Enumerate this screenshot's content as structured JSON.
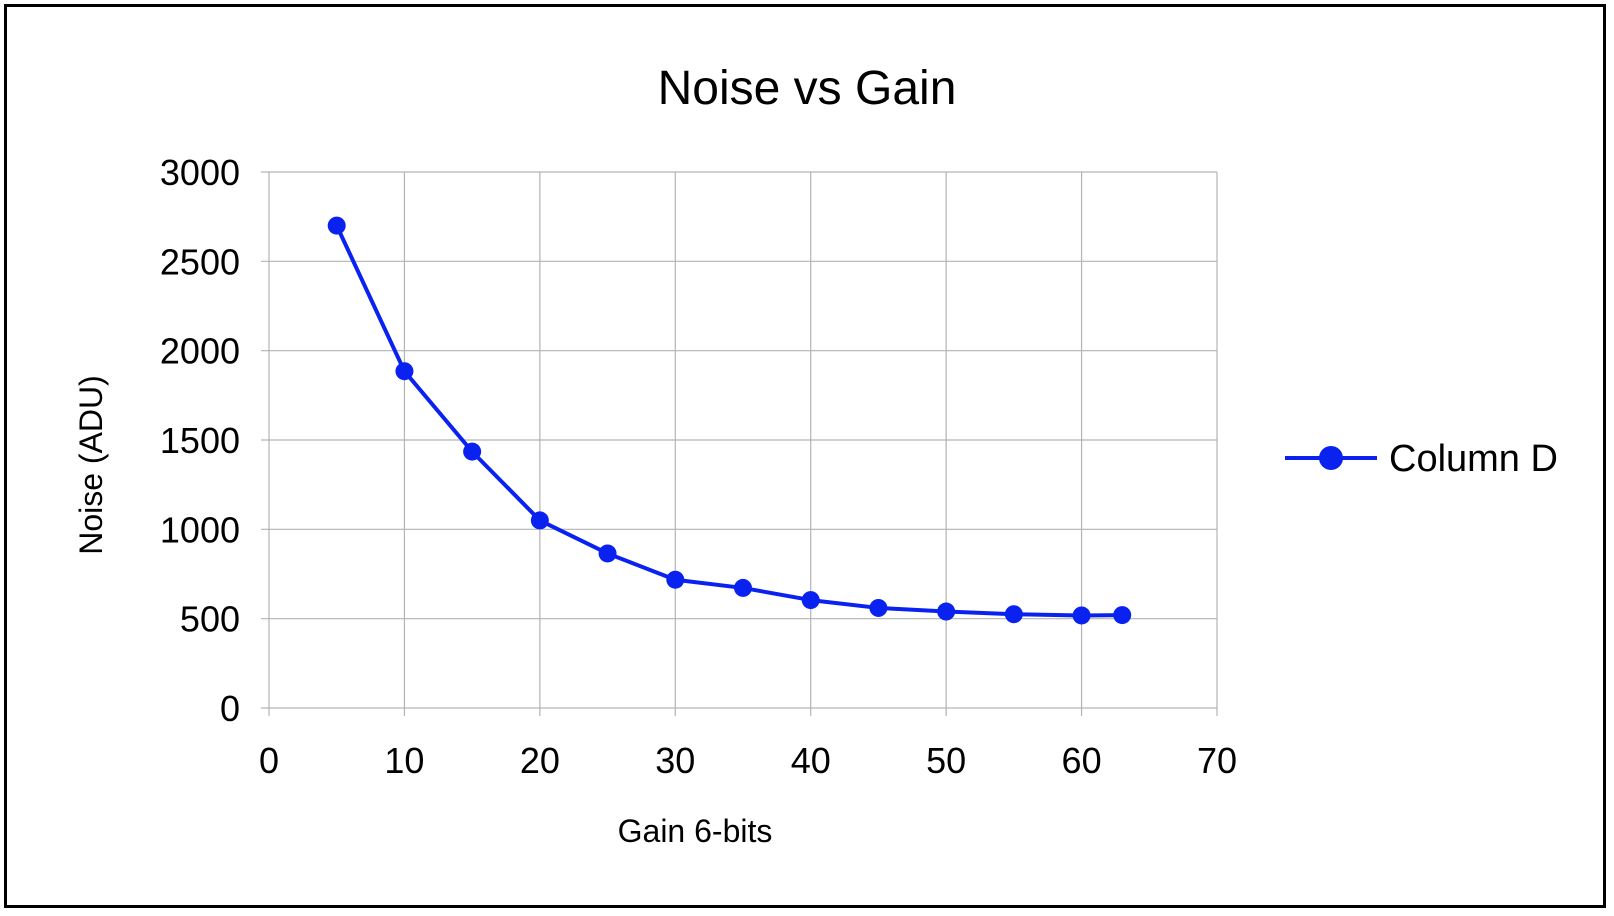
{
  "chart_data": {
    "type": "line",
    "title": "Noise vs Gain",
    "xlabel": "Gain 6-bits",
    "ylabel": "Noise (ADU)",
    "xlim": [
      0,
      70
    ],
    "ylim": [
      0,
      3000
    ],
    "xticks": [
      0,
      10,
      20,
      30,
      40,
      50,
      60,
      70
    ],
    "yticks": [
      0,
      500,
      1000,
      1500,
      2000,
      2500,
      3000
    ],
    "grid": true,
    "legend_position": "right",
    "series": [
      {
        "name": "Column D",
        "color": "#0a22f0",
        "x": [
          5,
          10,
          15,
          20,
          25,
          30,
          35,
          40,
          45,
          50,
          55,
          60,
          63
        ],
        "y": [
          2700,
          1885,
          1435,
          1050,
          865,
          718,
          672,
          604,
          560,
          540,
          525,
          518,
          520
        ]
      }
    ]
  }
}
